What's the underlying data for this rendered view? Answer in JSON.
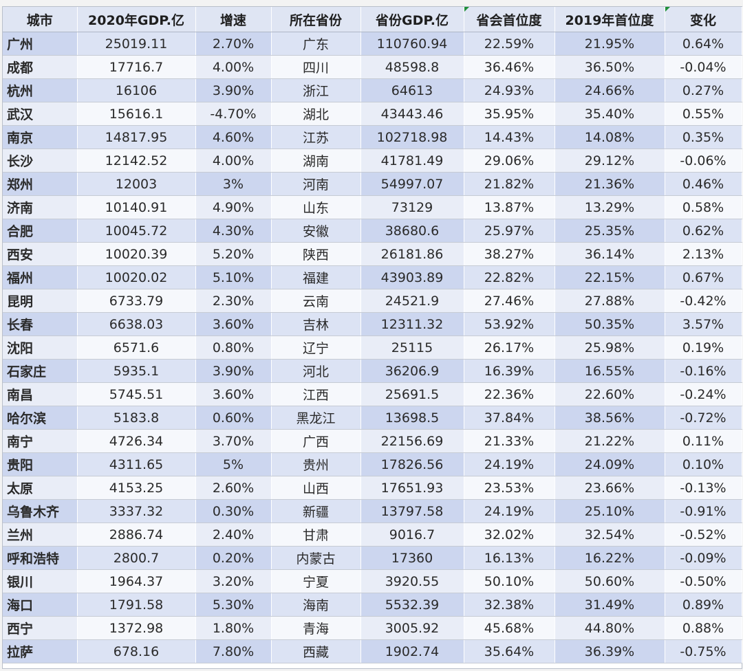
{
  "table": {
    "headers": [
      "城市",
      "2020年GDP.亿",
      "增速",
      "所在省份",
      "省份GDP.亿",
      "省会首位度",
      "2019年首位度",
      "变化"
    ],
    "rows": [
      [
        "广州",
        "25019.11",
        "2.70%",
        "广东",
        "110760.94",
        "22.59%",
        "21.95%",
        "0.64%"
      ],
      [
        "成都",
        "17716.7",
        "4.00%",
        "四川",
        "48598.8",
        "36.46%",
        "36.50%",
        "-0.04%"
      ],
      [
        "杭州",
        "16106",
        "3.90%",
        "浙江",
        "64613",
        "24.93%",
        "24.66%",
        "0.27%"
      ],
      [
        "武汉",
        "15616.1",
        "-4.70%",
        "湖北",
        "43443.46",
        "35.95%",
        "35.40%",
        "0.55%"
      ],
      [
        "南京",
        "14817.95",
        "4.60%",
        "江苏",
        "102718.98",
        "14.43%",
        "14.08%",
        "0.35%"
      ],
      [
        "长沙",
        "12142.52",
        "4.00%",
        "湖南",
        "41781.49",
        "29.06%",
        "29.12%",
        "-0.06%"
      ],
      [
        "郑州",
        "12003",
        "3%",
        "河南",
        "54997.07",
        "21.82%",
        "21.36%",
        "0.46%"
      ],
      [
        "济南",
        "10140.91",
        "4.90%",
        "山东",
        "73129",
        "13.87%",
        "13.29%",
        "0.58%"
      ],
      [
        "合肥",
        "10045.72",
        "4.30%",
        "安徽",
        "38680.6",
        "25.97%",
        "25.35%",
        "0.62%"
      ],
      [
        "西安",
        "10020.39",
        "5.20%",
        "陕西",
        "26181.86",
        "38.27%",
        "36.14%",
        "2.13%"
      ],
      [
        "福州",
        "10020.02",
        "5.10%",
        "福建",
        "43903.89",
        "22.82%",
        "22.15%",
        "0.67%"
      ],
      [
        "昆明",
        "6733.79",
        "2.30%",
        "云南",
        "24521.9",
        "27.46%",
        "27.88%",
        "-0.42%"
      ],
      [
        "长春",
        "6638.03",
        "3.60%",
        "吉林",
        "12311.32",
        "53.92%",
        "50.35%",
        "3.57%"
      ],
      [
        "沈阳",
        "6571.6",
        "0.80%",
        "辽宁",
        "25115",
        "26.17%",
        "25.98%",
        "0.19%"
      ],
      [
        "石家庄",
        "5935.1",
        "3.90%",
        "河北",
        "36206.9",
        "16.39%",
        "16.55%",
        "-0.16%"
      ],
      [
        "南昌",
        "5745.51",
        "3.60%",
        "江西",
        "25691.5",
        "22.36%",
        "22.60%",
        "-0.24%"
      ],
      [
        "哈尔滨",
        "5183.8",
        "0.60%",
        "黑龙江",
        "13698.5",
        "37.84%",
        "38.56%",
        "-0.72%"
      ],
      [
        "南宁",
        "4726.34",
        "3.70%",
        "广西",
        "22156.69",
        "21.33%",
        "21.22%",
        "0.11%"
      ],
      [
        "贵阳",
        "4311.65",
        "5%",
        "贵州",
        "17826.56",
        "24.19%",
        "24.09%",
        "0.10%"
      ],
      [
        "太原",
        "4153.25",
        "2.60%",
        "山西",
        "17651.93",
        "23.53%",
        "23.66%",
        "-0.13%"
      ],
      [
        "乌鲁木齐",
        "3337.32",
        "0.30%",
        "新疆",
        "13797.58",
        "24.19%",
        "25.10%",
        "-0.91%"
      ],
      [
        "兰州",
        "2886.74",
        "2.40%",
        "甘肃",
        "9016.7",
        "32.02%",
        "32.54%",
        "-0.52%"
      ],
      [
        "呼和浩特",
        "2800.7",
        "0.20%",
        "内蒙古",
        "17360",
        "16.13%",
        "16.22%",
        "-0.09%"
      ],
      [
        "银川",
        "1964.37",
        "3.20%",
        "宁夏",
        "3920.55",
        "50.10%",
        "50.60%",
        "-0.50%"
      ],
      [
        "海口",
        "1791.58",
        "5.30%",
        "海南",
        "5532.39",
        "32.38%",
        "31.49%",
        "0.89%"
      ],
      [
        "西宁",
        "1372.98",
        "1.80%",
        "青海",
        "3005.92",
        "45.68%",
        "44.80%",
        "0.88%"
      ],
      [
        "拉萨",
        "678.16",
        "7.80%",
        "西藏",
        "1902.74",
        "35.64%",
        "36.39%",
        "-0.75%"
      ]
    ]
  },
  "colors": {
    "header_bg": "#dfe5f3",
    "row_odd_bg": "#ccd6ef",
    "row_even_bg": "#e9edf7",
    "comment_marker": "#1f8f3a"
  }
}
